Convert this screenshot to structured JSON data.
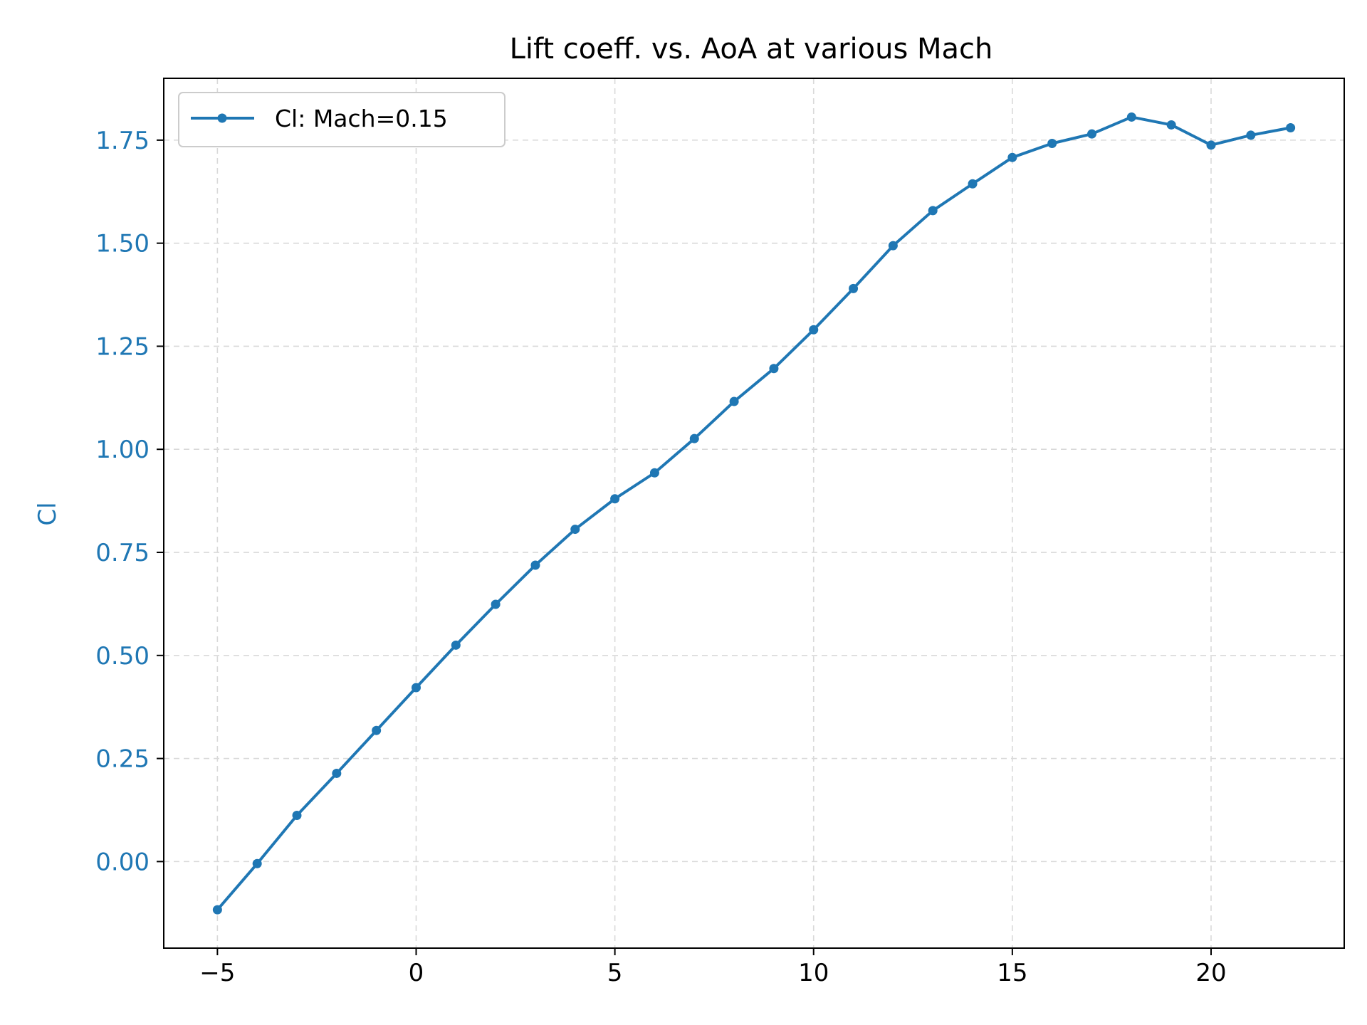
{
  "chart_data": {
    "type": "line",
    "title": "Lift coeff. vs. AoA at various Mach",
    "xlabel": "",
    "ylabel": "Cl",
    "xlim": [
      -6.35,
      23.35
    ],
    "ylim": [
      -0.21,
      1.9
    ],
    "xticks": [
      -5,
      0,
      5,
      10,
      15,
      20
    ],
    "xtick_labels": [
      "−5",
      "0",
      "5",
      "10",
      "15",
      "20"
    ],
    "yticks": [
      0.0,
      0.25,
      0.5,
      0.75,
      1.0,
      1.25,
      1.5,
      1.75
    ],
    "ytick_labels": [
      "0.00",
      "0.25",
      "0.50",
      "0.75",
      "1.00",
      "1.25",
      "1.50",
      "1.75"
    ],
    "grid": true,
    "legend_position": "upper-left",
    "x": [
      -5,
      -4,
      -3,
      -2,
      -1,
      0,
      1,
      2,
      3,
      4,
      5,
      6,
      7,
      8,
      9,
      10,
      11,
      12,
      13,
      14,
      15,
      16,
      17,
      18,
      19,
      20,
      21,
      22
    ],
    "series": [
      {
        "name": "Cl: Mach=0.15",
        "color": "#1f77b4",
        "values": [
          -0.117,
          -0.005,
          0.112,
          0.214,
          0.318,
          0.422,
          0.525,
          0.624,
          0.719,
          0.806,
          0.88,
          0.943,
          1.026,
          1.116,
          1.196,
          1.29,
          1.39,
          1.494,
          1.579,
          1.644,
          1.708,
          1.742,
          1.765,
          1.806,
          1.787,
          1.738,
          1.762,
          1.78
        ]
      }
    ],
    "colors": {
      "axis_label": "#1f77b4",
      "ytick_label": "#1f77b4",
      "xtick_label": "#000000"
    }
  }
}
